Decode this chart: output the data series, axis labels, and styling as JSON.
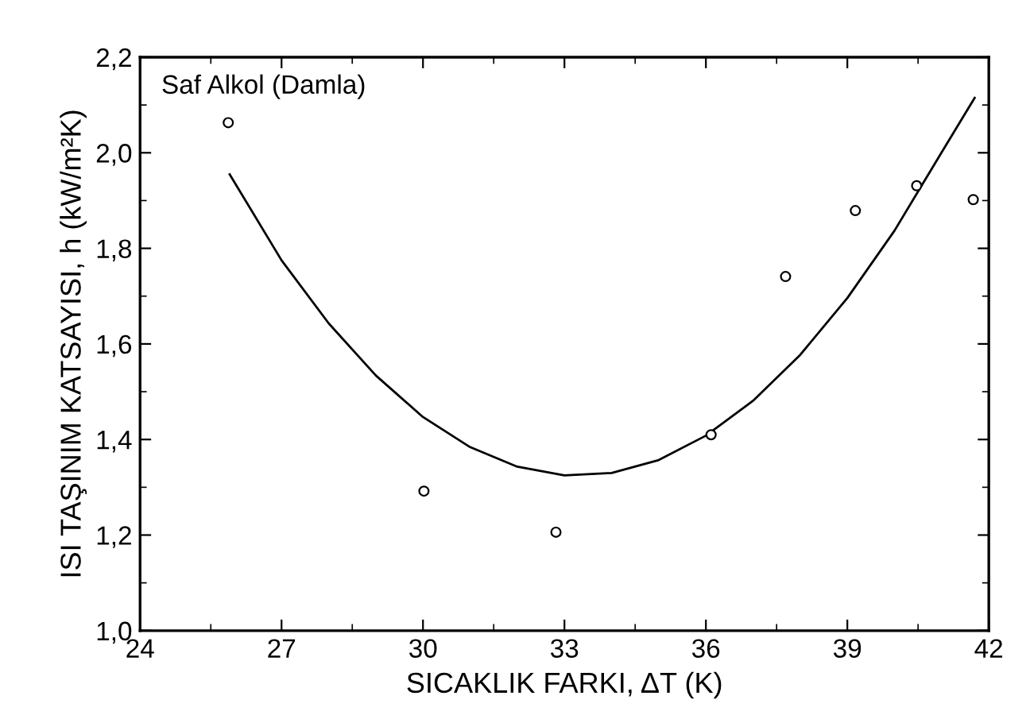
{
  "chart_data": {
    "type": "scatter",
    "xlabel": "SICAKLIK FARKI, ΔT (K)",
    "ylabel": "ISI TAŞINIM KATSAYISI, h (kW/m²K)",
    "annotations": [
      "Saf Alkol (Damla)"
    ],
    "xlim": [
      24,
      42
    ],
    "xticks": [
      24,
      27,
      30,
      33,
      36,
      39,
      42
    ],
    "ylim": [
      1.0,
      2.2
    ],
    "yticks": [
      {
        "value": 1.0,
        "label": "1,0"
      },
      {
        "value": 1.2,
        "label": "1,2"
      },
      {
        "value": 1.4,
        "label": "1,4"
      },
      {
        "value": 1.6,
        "label": "1,6"
      },
      {
        "value": 1.8,
        "label": "1,8"
      },
      {
        "value": 2.0,
        "label": "2,0"
      },
      {
        "value": 2.2,
        "label": "2,2"
      }
    ],
    "grid": false,
    "legend": false,
    "series": [
      {
        "marker": "circle",
        "color": "#000000",
        "x": [
          25.87,
          30.02,
          32.82,
          36.11,
          37.69,
          39.17,
          40.47,
          41.67
        ],
        "values": [
          2.063,
          1.292,
          1.206,
          1.41,
          1.741,
          1.879,
          1.931,
          1.902
        ]
      },
      {
        "type": "line",
        "marker": "none",
        "line_style": "solid",
        "color": "#000000",
        "x": [
          25.9,
          27,
          28,
          29,
          30,
          31,
          32,
          33,
          34,
          35,
          36,
          37,
          38,
          39,
          40,
          41,
          41.7
        ],
        "values": [
          1.955,
          1.775,
          1.643,
          1.534,
          1.447,
          1.384,
          1.343,
          1.325,
          1.33,
          1.357,
          1.408,
          1.481,
          1.577,
          1.696,
          1.837,
          2.001,
          2.115
        ]
      }
    ]
  }
}
